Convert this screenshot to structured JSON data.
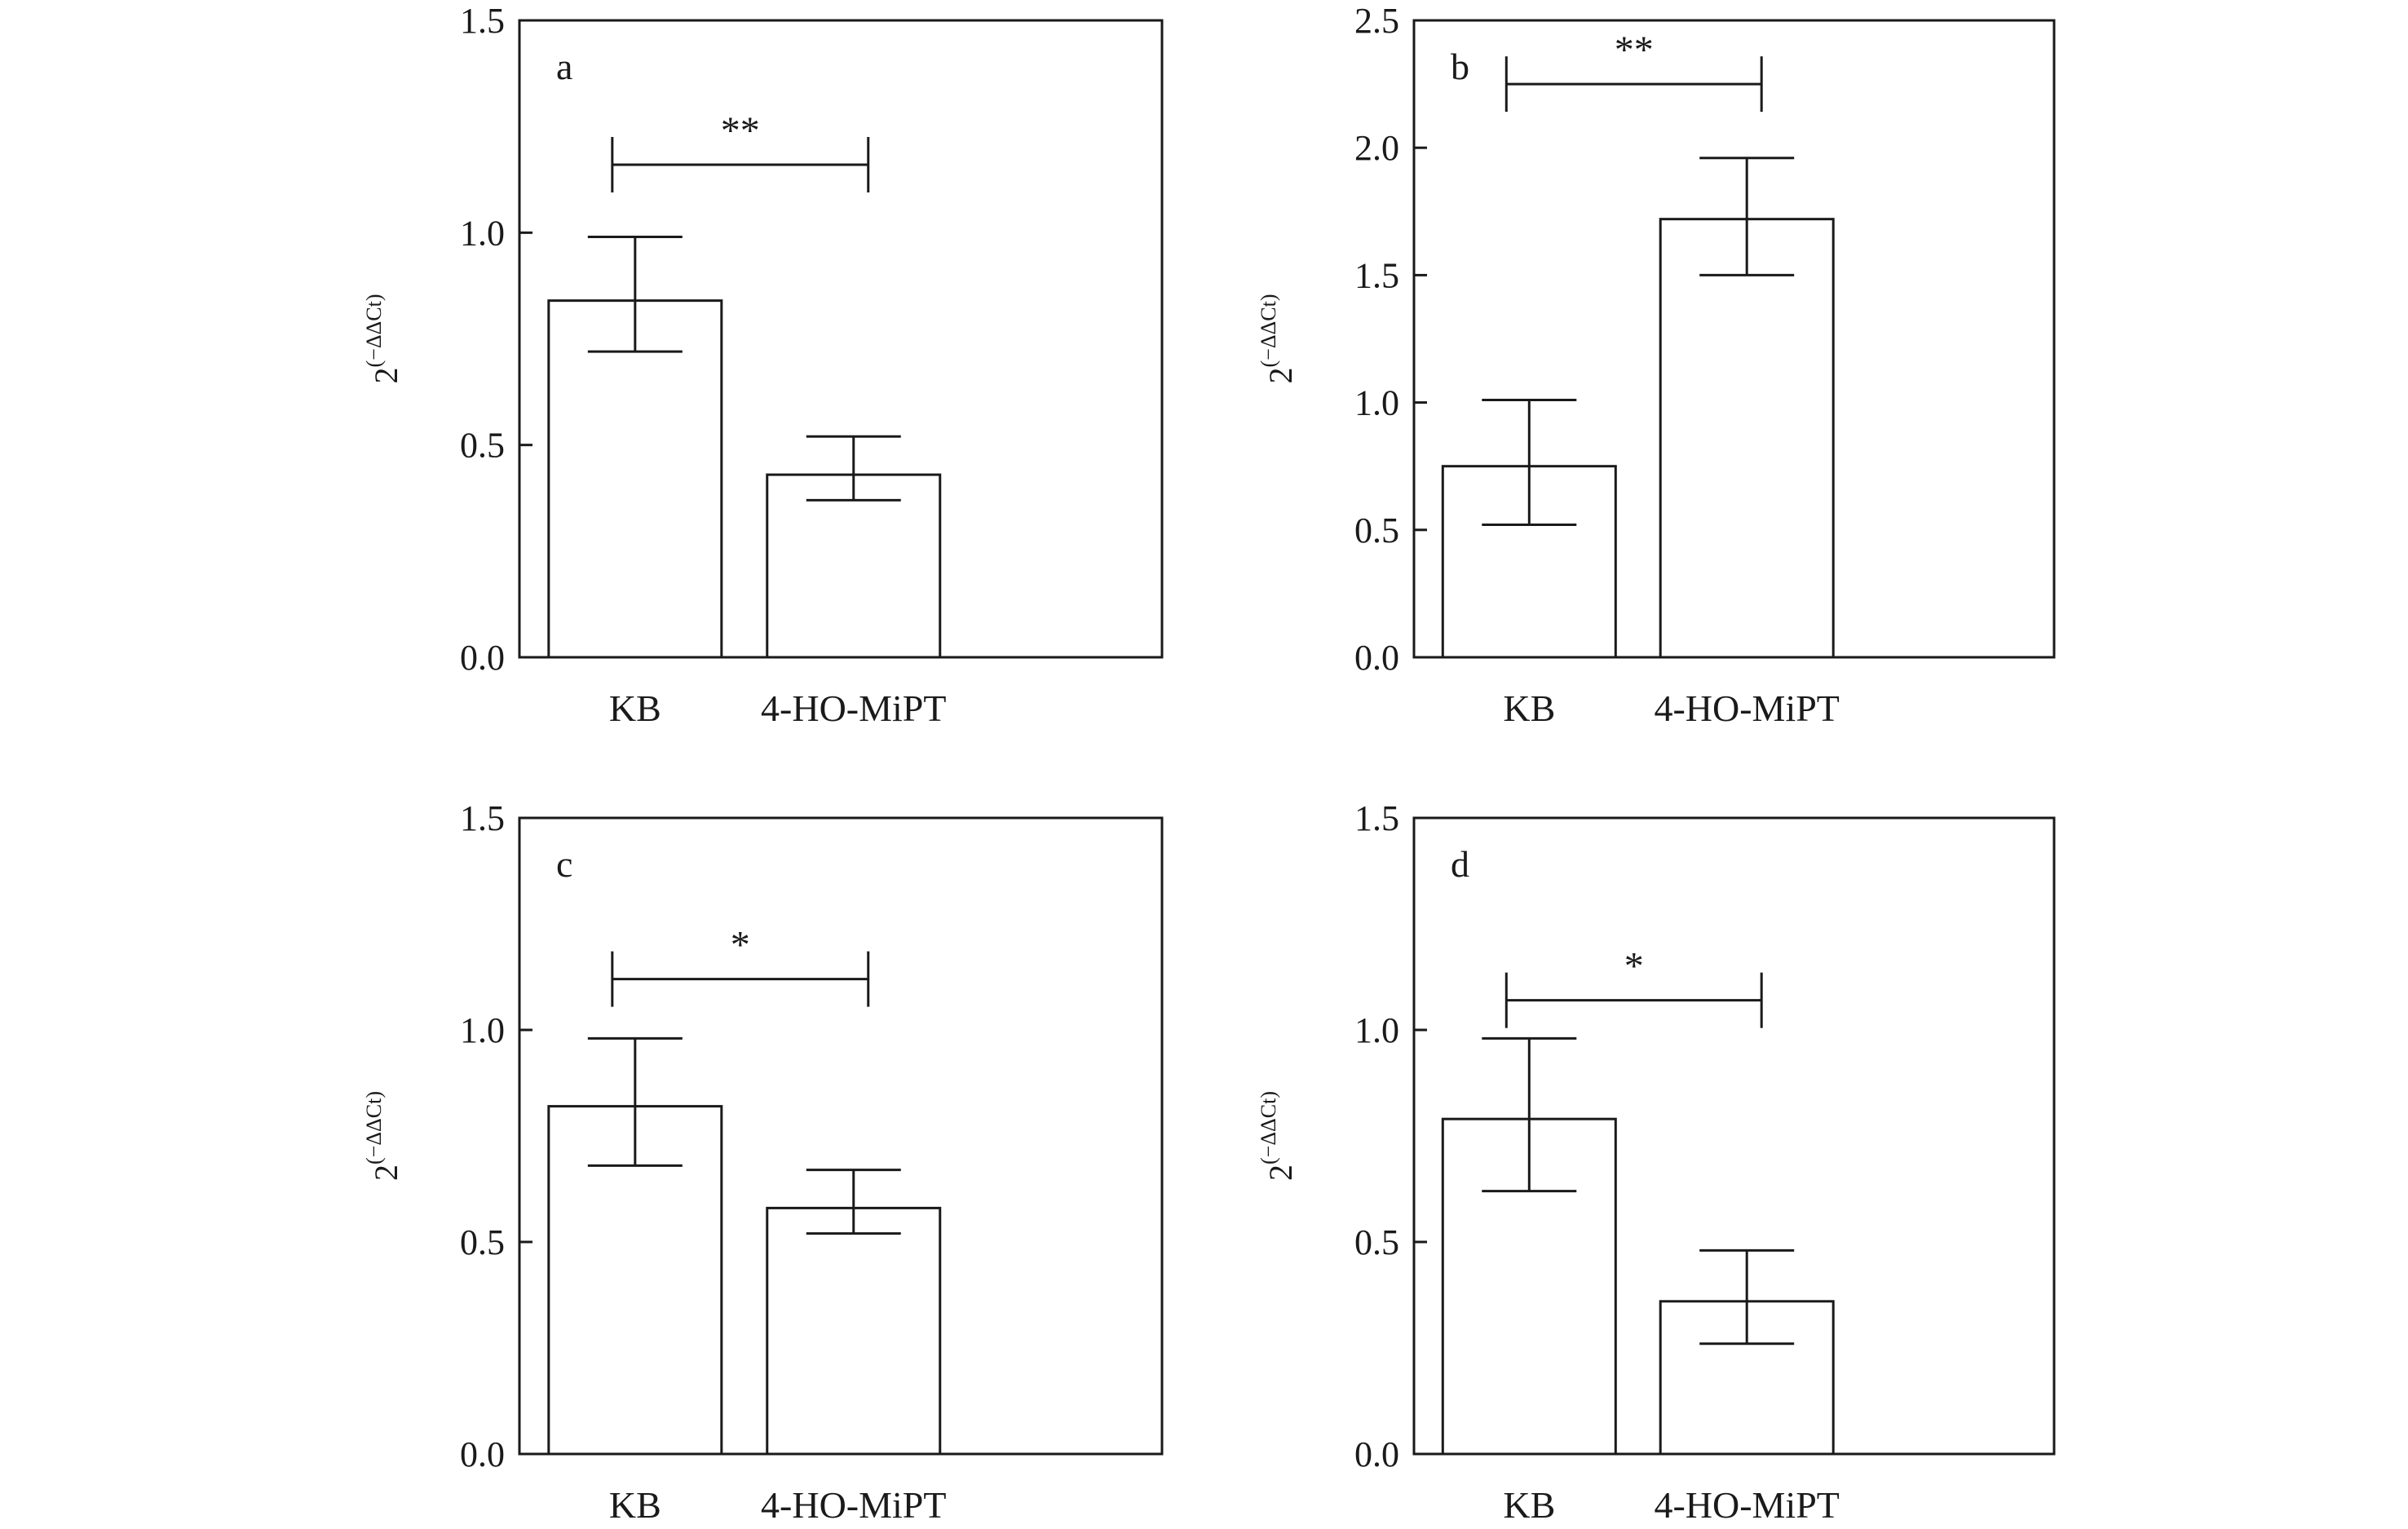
{
  "chart_data": [
    {
      "panel": "a",
      "type": "bar",
      "categories": [
        "KB",
        "4-HO-MiPT"
      ],
      "values": [
        0.84,
        0.43
      ],
      "errors_lower": [
        0.72,
        0.37
      ],
      "errors_upper": [
        0.99,
        0.52
      ],
      "ylabel_base": "2",
      "ylabel_exponent": "(−ΔΔCt)",
      "ylim": [
        0,
        1.5
      ],
      "yticks": [
        "0.0",
        "0.5",
        "1.0",
        "1.5"
      ],
      "significance": {
        "label": "**",
        "level": 1.16
      },
      "grid": false,
      "legend": "none"
    },
    {
      "panel": "b",
      "type": "bar",
      "categories": [
        "KB",
        "4-HO-MiPT"
      ],
      "values": [
        0.75,
        1.72
      ],
      "errors_lower": [
        0.52,
        1.5
      ],
      "errors_upper": [
        1.01,
        1.96
      ],
      "ylabel_base": "2",
      "ylabel_exponent": "(−ΔΔCt)",
      "ylim": [
        0,
        2.5
      ],
      "yticks": [
        "0.0",
        "0.5",
        "1.0",
        "1.5",
        "2.0",
        "2.5"
      ],
      "significance": {
        "label": "**",
        "level": 2.25
      },
      "grid": false,
      "legend": "none"
    },
    {
      "panel": "c",
      "type": "bar",
      "categories": [
        "KB",
        "4-HO-MiPT"
      ],
      "values": [
        0.82,
        0.58
      ],
      "errors_lower": [
        0.68,
        0.52
      ],
      "errors_upper": [
        0.98,
        0.67
      ],
      "ylabel_base": "2",
      "ylabel_exponent": "(−ΔΔCt)",
      "ylim": [
        0,
        1.5
      ],
      "yticks": [
        "0.0",
        "0.5",
        "1.0",
        "1.5"
      ],
      "significance": {
        "label": "*",
        "level": 1.12
      },
      "grid": false,
      "legend": "none"
    },
    {
      "panel": "d",
      "type": "bar",
      "categories": [
        "KB",
        "4-HO-MiPT"
      ],
      "values": [
        0.79,
        0.36
      ],
      "errors_lower": [
        0.62,
        0.26
      ],
      "errors_upper": [
        0.98,
        0.48
      ],
      "ylabel_base": "2",
      "ylabel_exponent": "(−ΔΔCt)",
      "ylim": [
        0,
        1.5
      ],
      "yticks": [
        "0.0",
        "0.5",
        "1.0",
        "1.5"
      ],
      "significance": {
        "label": "*",
        "level": 1.07
      },
      "grid": false,
      "legend": "none"
    }
  ]
}
